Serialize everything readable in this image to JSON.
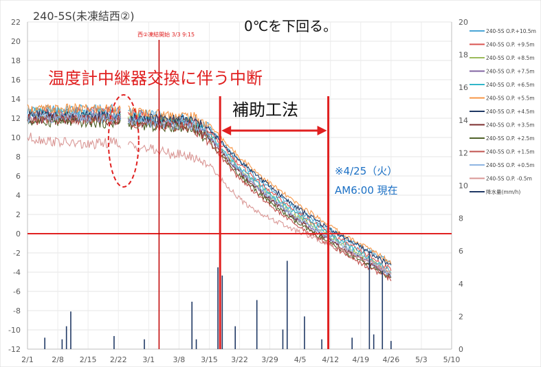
{
  "chart_data": {
    "type": "line",
    "title": "240-5S(未凍結西②)",
    "x_ticks": [
      "2/1",
      "2/8",
      "2/15",
      "2/22",
      "3/1",
      "3/8",
      "3/15",
      "3/22",
      "3/29",
      "4/5",
      "4/12",
      "4/19",
      "4/26",
      "5/3",
      "5/10"
    ],
    "y_left_ticks": [
      22,
      20,
      18,
      16,
      14,
      12,
      10,
      8,
      6,
      4,
      2,
      0,
      -2,
      -4,
      -6,
      -8,
      -10,
      -12
    ],
    "y_right_ticks": [
      20,
      18,
      16,
      14,
      12,
      10,
      8,
      6,
      4,
      2,
      0
    ],
    "ylim_left": [
      -12,
      22
    ],
    "ylim_right": [
      0,
      20
    ],
    "xlim_days": [
      0,
      98
    ],
    "annotations": {
      "freeze_label": "0℃を下回る。",
      "freeze_start_label": "西②凍結開始 3/3 9:15",
      "interruption_label": "温度計中継器交換に伴う中断",
      "auxiliary_label": "補助工法",
      "current_line1": "※4/25（火）",
      "current_line2": "AM6:00 現在"
    },
    "colors": {
      "red": "#e02020",
      "blue_text": "#1a6fc4"
    },
    "series": [
      {
        "name": "240-5S O.P.+10.5m",
        "color": "#4aa5d6",
        "axis": "left",
        "points": [
          [
            0,
            12.8
          ],
          [
            20,
            12.9
          ],
          [
            28,
            12.3
          ],
          [
            38,
            12.0
          ],
          [
            42,
            11.0
          ],
          [
            48,
            7.9
          ],
          [
            55,
            5.0
          ],
          [
            62,
            2.6
          ],
          [
            68,
            0.9
          ],
          [
            74,
            -0.7
          ],
          [
            80,
            -2.0
          ],
          [
            84,
            -3.1
          ]
        ]
      },
      {
        "name": "240-5S O.P. +9.5m",
        "color": "#d9534f",
        "axis": "left",
        "points": [
          [
            0,
            12.5
          ],
          [
            20,
            12.7
          ],
          [
            28,
            12.1
          ],
          [
            38,
            11.7
          ],
          [
            42,
            10.6
          ],
          [
            48,
            7.6
          ],
          [
            55,
            4.7
          ],
          [
            62,
            2.3
          ],
          [
            68,
            0.6
          ],
          [
            74,
            -1.1
          ],
          [
            80,
            -2.6
          ],
          [
            84,
            -3.7
          ]
        ]
      },
      {
        "name": "240-5S O.P. +8.5m",
        "color": "#9bbb59",
        "axis": "left",
        "points": [
          [
            0,
            12.2
          ],
          [
            20,
            12.0
          ],
          [
            28,
            11.8
          ],
          [
            38,
            11.4
          ],
          [
            42,
            10.2
          ],
          [
            48,
            7.1
          ],
          [
            55,
            4.3
          ],
          [
            62,
            1.9
          ],
          [
            68,
            0.3
          ],
          [
            74,
            -1.5
          ],
          [
            80,
            -3.0
          ],
          [
            84,
            -4.2
          ]
        ]
      },
      {
        "name": "240-5S O.P. +7.5m",
        "color": "#8064a2",
        "axis": "left",
        "points": [
          [
            0,
            12.0
          ],
          [
            20,
            12.3
          ],
          [
            28,
            11.7
          ],
          [
            38,
            11.3
          ],
          [
            42,
            10.0
          ],
          [
            48,
            6.9
          ],
          [
            55,
            4.0
          ],
          [
            62,
            1.6
          ],
          [
            68,
            0.0
          ],
          [
            74,
            -1.8
          ],
          [
            80,
            -3.3
          ],
          [
            84,
            -4.4
          ]
        ]
      },
      {
        "name": "240-5S O.P. +6.5m",
        "color": "#31b6c9",
        "axis": "left",
        "points": [
          [
            0,
            12.6
          ],
          [
            20,
            12.4
          ],
          [
            28,
            11.9
          ],
          [
            38,
            11.6
          ],
          [
            42,
            10.4
          ],
          [
            48,
            7.3
          ],
          [
            55,
            4.5
          ],
          [
            62,
            2.1
          ],
          [
            68,
            0.5
          ],
          [
            74,
            -1.2
          ],
          [
            80,
            -2.8
          ],
          [
            84,
            -3.9
          ]
        ]
      },
      {
        "name": "240-5S O.P. +5.5m",
        "color": "#f79646",
        "axis": "left",
        "points": [
          [
            0,
            12.9
          ],
          [
            20,
            13.0
          ],
          [
            28,
            12.5
          ],
          [
            38,
            12.2
          ],
          [
            42,
            11.3
          ],
          [
            48,
            8.4
          ],
          [
            55,
            5.6
          ],
          [
            62,
            3.2
          ],
          [
            68,
            1.4
          ],
          [
            74,
            -0.4
          ],
          [
            80,
            -1.8
          ],
          [
            84,
            -3.0
          ]
        ]
      },
      {
        "name": "240-5S O.P. +4.5m",
        "color": "#1f3864",
        "axis": "left",
        "points": [
          [
            0,
            12.3
          ],
          [
            20,
            12.2
          ],
          [
            28,
            11.9
          ],
          [
            38,
            11.8
          ],
          [
            42,
            10.8
          ],
          [
            48,
            8.0
          ],
          [
            55,
            5.3
          ],
          [
            62,
            2.8
          ],
          [
            68,
            1.0
          ],
          [
            74,
            -0.6
          ],
          [
            80,
            -2.2
          ],
          [
            84,
            -3.4
          ]
        ]
      },
      {
        "name": "240-5S O.P. +3.5m",
        "color": "#7b2c2c",
        "axis": "left",
        "points": [
          [
            0,
            11.9
          ],
          [
            20,
            11.8
          ],
          [
            28,
            11.4
          ],
          [
            38,
            11.2
          ],
          [
            42,
            9.9
          ],
          [
            48,
            6.8
          ],
          [
            55,
            3.9
          ],
          [
            62,
            1.5
          ],
          [
            68,
            -0.2
          ],
          [
            74,
            -1.9
          ],
          [
            80,
            -3.4
          ],
          [
            84,
            -4.5
          ]
        ]
      },
      {
        "name": "240-5S O.P. +2.5m",
        "color": "#4f6228",
        "axis": "left",
        "points": [
          [
            0,
            11.7
          ],
          [
            20,
            11.5
          ],
          [
            28,
            11.2
          ],
          [
            38,
            11.0
          ],
          [
            42,
            9.6
          ],
          [
            48,
            6.5
          ],
          [
            55,
            3.6
          ],
          [
            62,
            1.2
          ],
          [
            68,
            -0.5
          ],
          [
            74,
            -2.1
          ],
          [
            80,
            -3.6
          ],
          [
            84,
            -4.7
          ]
        ]
      },
      {
        "name": "240-5S O.P. +1.5m",
        "color": "#c0504d",
        "axis": "left",
        "points": [
          [
            0,
            11.8
          ],
          [
            20,
            11.9
          ],
          [
            28,
            11.3
          ],
          [
            38,
            11.1
          ],
          [
            42,
            9.5
          ],
          [
            48,
            6.2
          ],
          [
            55,
            3.3
          ],
          [
            62,
            0.9
          ],
          [
            68,
            -0.7
          ],
          [
            74,
            -2.3
          ],
          [
            80,
            -3.8
          ],
          [
            84,
            -4.8
          ]
        ]
      },
      {
        "name": "240-5S O.P. +0.5m",
        "color": "#8db4e2",
        "axis": "left",
        "points": [
          [
            0,
            12.1
          ],
          [
            20,
            12.0
          ],
          [
            28,
            11.5
          ],
          [
            38,
            11.3
          ],
          [
            42,
            10.1
          ],
          [
            48,
            7.0
          ],
          [
            55,
            4.1
          ],
          [
            62,
            1.7
          ],
          [
            68,
            0.1
          ],
          [
            74,
            -1.6
          ],
          [
            80,
            -3.1
          ],
          [
            84,
            -4.3
          ]
        ]
      },
      {
        "name": "240-5S O.P. -0.5m",
        "color": "#d99694",
        "axis": "left",
        "points": [
          [
            0,
            10.0
          ],
          [
            6,
            9.6
          ],
          [
            14,
            9.2
          ],
          [
            20,
            9.5
          ],
          [
            26,
            9.0
          ],
          [
            32,
            8.4
          ],
          [
            38,
            8.0
          ],
          [
            42,
            7.2
          ],
          [
            46,
            5.0
          ],
          [
            50,
            3.2
          ],
          [
            55,
            1.8
          ],
          [
            62,
            0.3
          ],
          [
            68,
            -0.8
          ],
          [
            74,
            -1.9
          ],
          [
            80,
            -3.1
          ],
          [
            84,
            -4.2
          ]
        ]
      },
      {
        "name": "降水量(mm/h)",
        "color": "#1f3864",
        "axis": "right",
        "points": [
          [
            4,
            0.7
          ],
          [
            8,
            0.6
          ],
          [
            9,
            1.4
          ],
          [
            10,
            2.3
          ],
          [
            20,
            0.8
          ],
          [
            27,
            0.6
          ],
          [
            38,
            2.9
          ],
          [
            39,
            0.6
          ],
          [
            44,
            5.0
          ],
          [
            45,
            4.5
          ],
          [
            48,
            1.4
          ],
          [
            53,
            3.0
          ],
          [
            59,
            1.2
          ],
          [
            60,
            5.4
          ],
          [
            64,
            2.0
          ],
          [
            68,
            0.6
          ],
          [
            75,
            0.7
          ],
          [
            79,
            6.0
          ],
          [
            80,
            0.9
          ],
          [
            82,
            4.8
          ],
          [
            84,
            0.5
          ]
        ]
      }
    ]
  }
}
